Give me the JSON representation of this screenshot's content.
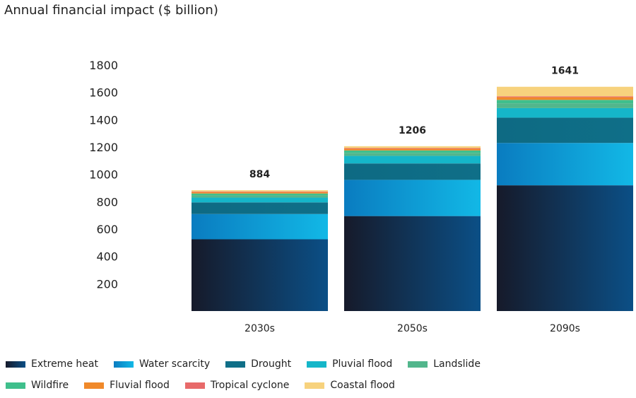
{
  "chart_data": {
    "type": "stacked-bar",
    "title": "Annual financial impact ($ billion)",
    "xlabel": "",
    "ylabel": "",
    "ylim": [
      0,
      1800
    ],
    "yticks": [
      200,
      400,
      600,
      800,
      1000,
      1200,
      1400,
      1600,
      1800
    ],
    "categories": [
      "2030s",
      "2050s",
      "2090s"
    ],
    "totals": [
      884,
      1206,
      1641
    ],
    "series": [
      {
        "name": "Extreme heat",
        "color": "#0b4f86",
        "values": [
          525,
          695,
          920
        ]
      },
      {
        "name": "Water scarcity",
        "color": "#1a9fd8",
        "values": [
          185,
          265,
          310
        ]
      },
      {
        "name": "Drought",
        "color": "#0f6f88",
        "values": [
          85,
          120,
          185
        ]
      },
      {
        "name": "Pluvial flood",
        "color": "#15b6c9",
        "values": [
          35,
          55,
          70
        ]
      },
      {
        "name": "Landslide",
        "color": "#52b68c",
        "values": [
          18,
          22,
          35
        ]
      },
      {
        "name": "Wildfire",
        "color": "#3fbf8c",
        "values": [
          12,
          18,
          25
        ]
      },
      {
        "name": "Fluvial flood",
        "color": "#f0892a",
        "values": [
          10,
          12,
          20
        ]
      },
      {
        "name": "Tropical cyclone",
        "color": "#e86a6a",
        "values": [
          4,
          5,
          6
        ]
      },
      {
        "name": "Coastal flood",
        "color": "#f7d27d",
        "values": [
          10,
          14,
          70
        ]
      }
    ],
    "legend_position": "bottom"
  }
}
